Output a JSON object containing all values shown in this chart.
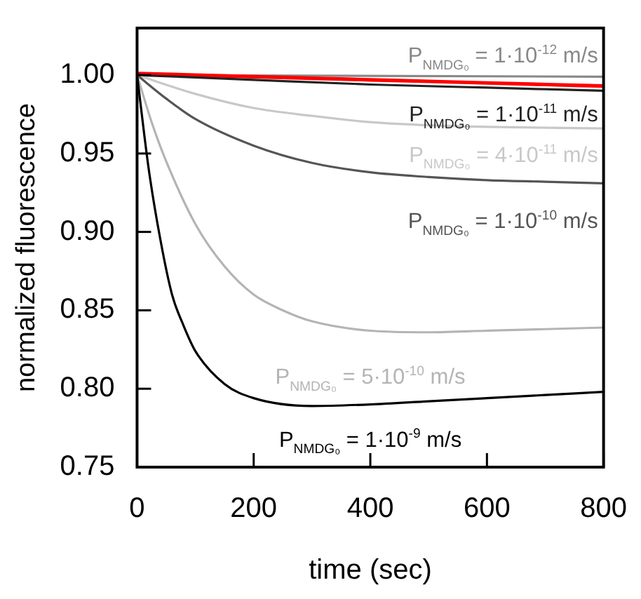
{
  "chart_data": {
    "type": "line",
    "xlabel": "time (sec)",
    "ylabel": "normalized fluorescence",
    "xlim": [
      0,
      800
    ],
    "xticks": [
      0,
      200,
      400,
      600,
      800
    ],
    "ylim": [
      0.75,
      1.03
    ],
    "yticks": [
      {
        "value": 0.75,
        "label": "0.75"
      },
      {
        "value": 0.8,
        "label": "0.80"
      },
      {
        "value": 0.85,
        "label": "0.85"
      },
      {
        "value": 0.9,
        "label": "0.90"
      },
      {
        "value": 0.95,
        "label": "0.95"
      },
      {
        "value": 1.0,
        "label": "1.00"
      }
    ],
    "grid": false,
    "legend": false,
    "marker": "none",
    "line_style": "solid",
    "series": [
      {
        "name": "P$_{NMDG₀}$ = 1·10$^{-12}$ m/s",
        "color": "#888888",
        "x": [
          0,
          800
        ],
        "values": [
          1.0,
          0.999
        ]
      },
      {
        "color": "#ff0000",
        "x": [
          0,
          100,
          200,
          300,
          400,
          500,
          600,
          700,
          800
        ],
        "values": [
          1.001,
          1.0,
          0.999,
          0.998,
          0.997,
          0.996,
          0.995,
          0.994,
          0.993
        ]
      },
      {
        "name": "P$_{NMDG₀}$ = 1·10$^{-11}$ m/s",
        "color": "#222222",
        "x": [
          0,
          200,
          400,
          600,
          800
        ],
        "values": [
          1.0,
          0.997,
          0.994,
          0.992,
          0.99
        ]
      },
      {
        "name": "P$_{NMDG₀}$ = 4·10$^{-11}$ m/s",
        "color": "#c8c8c8",
        "x": [
          0,
          100,
          200,
          300,
          400,
          500,
          600,
          800
        ],
        "values": [
          1.0,
          0.988,
          0.979,
          0.974,
          0.97,
          0.968,
          0.967,
          0.966
        ]
      },
      {
        "name": "P$_{NMDG₀}$ = 1·10$^{-10}$ m/s",
        "color": "#555555",
        "x": [
          0,
          50,
          100,
          200,
          300,
          400,
          500,
          600,
          700,
          800
        ],
        "values": [
          1.0,
          0.985,
          0.972,
          0.955,
          0.944,
          0.938,
          0.935,
          0.933,
          0.932,
          0.931
        ]
      },
      {
        "name": "P$_{NMDG₀}$ = 5·10$^{-10}$ m/s",
        "color": "#b4b4b4",
        "x": [
          0,
          25,
          50,
          100,
          150,
          200,
          250,
          300,
          400,
          500,
          600,
          700,
          800
        ],
        "values": [
          1.0,
          0.97,
          0.945,
          0.905,
          0.878,
          0.86,
          0.85,
          0.843,
          0.837,
          0.836,
          0.837,
          0.838,
          0.839
        ]
      },
      {
        "name": "P$_{NMDG₀}$ = 1·10$^{-9}$ m/s",
        "color": "#000000",
        "x": [
          0,
          20,
          40,
          60,
          80,
          100,
          150,
          200,
          300,
          400,
          500,
          600,
          700,
          800
        ],
        "values": [
          1.0,
          0.94,
          0.895,
          0.86,
          0.84,
          0.824,
          0.803,
          0.794,
          0.789,
          0.79,
          0.792,
          0.794,
          0.796,
          0.798
        ]
      }
    ]
  }
}
